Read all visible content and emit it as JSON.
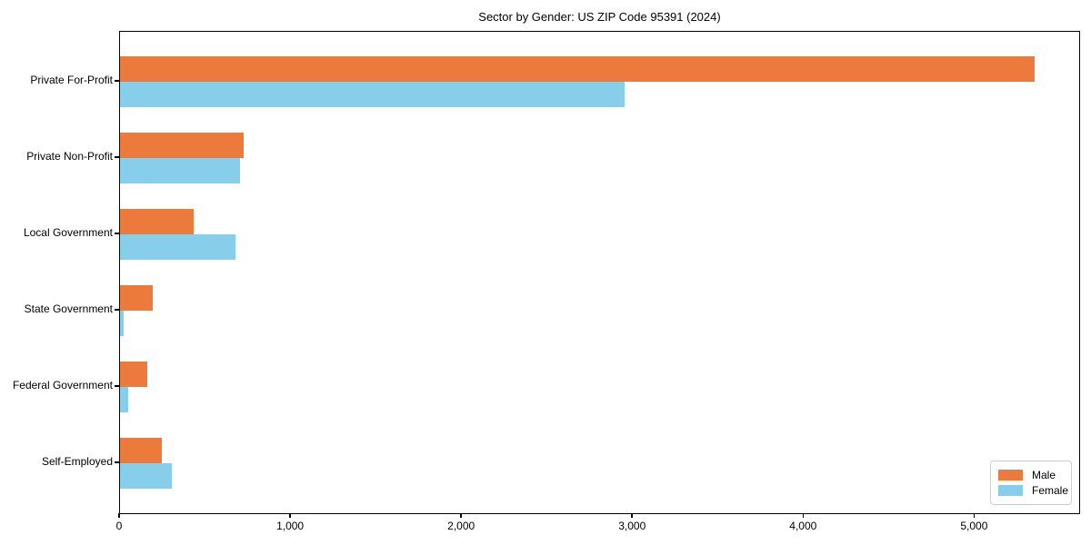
{
  "figure": {
    "title": "Sector by Gender: US ZIP Code 95391 (2024)"
  },
  "chart_data": {
    "type": "bar",
    "orientation": "horizontal",
    "title": "Sector by Gender: US ZIP Code 95391 (2024)",
    "categories": [
      "Private For-Profit",
      "Private Non-Profit",
      "Local Government",
      "State Government",
      "Federal Government",
      "Self-Employed"
    ],
    "series": [
      {
        "name": "Male",
        "color": "#EC7A3C",
        "values": [
          5350,
          725,
          430,
          190,
          160,
          245
        ]
      },
      {
        "name": "Female",
        "color": "#87CEEB",
        "values": [
          2950,
          700,
          675,
          20,
          45,
          305
        ]
      }
    ],
    "xlabel": "",
    "ylabel": "",
    "xlim": [
      0,
      5620
    ],
    "xticks": {
      "values": [
        0,
        1000,
        2000,
        3000,
        4000,
        5000
      ],
      "labels": [
        "0",
        "1,000",
        "2,000",
        "3,000",
        "4,000",
        "5,000"
      ]
    },
    "grid": false,
    "background_color": "#ffffff",
    "axis_color": "#000000",
    "legend": {
      "position": "lower right",
      "entries": [
        "Male",
        "Female"
      ]
    }
  }
}
